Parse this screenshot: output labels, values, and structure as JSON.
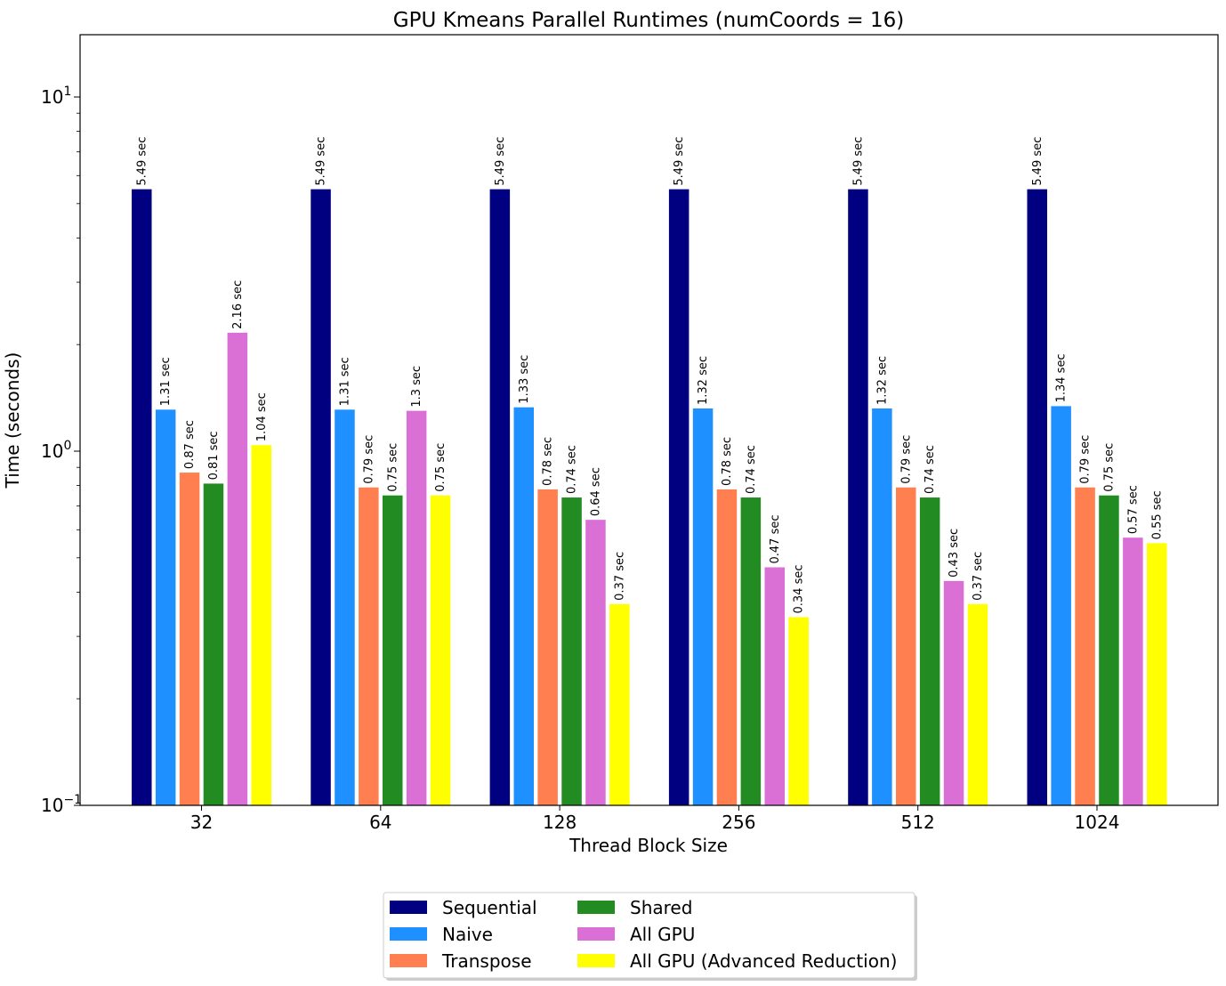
{
  "chart_data": {
    "type": "bar",
    "title": "GPU Kmeans Parallel Runtimes (numCoords = 16)",
    "xlabel": "Thread Block Size",
    "ylabel": "Time (seconds)",
    "y_scale": "log",
    "ylim": [
      0.1,
      15.5
    ],
    "y_ticks": [
      {
        "value": 0.1,
        "base": "10",
        "exp": "−1"
      },
      {
        "value": 1,
        "base": "10",
        "exp": "0"
      },
      {
        "value": 10,
        "base": "10",
        "exp": "1"
      }
    ],
    "categories": [
      "32",
      "64",
      "128",
      "256",
      "512",
      "1024"
    ],
    "series": [
      {
        "name": "Sequential",
        "color": "#000080",
        "values": [
          5.49,
          5.49,
          5.49,
          5.49,
          5.49,
          5.49
        ],
        "labels": [
          "5.49 sec",
          "5.49 sec",
          "5.49 sec",
          "5.49 sec",
          "5.49 sec",
          "5.49 sec"
        ]
      },
      {
        "name": "Naive",
        "color": "#1E90FF",
        "values": [
          1.31,
          1.31,
          1.33,
          1.32,
          1.32,
          1.34
        ],
        "labels": [
          "1.31 sec",
          "1.31 sec",
          "1.33 sec",
          "1.32 sec",
          "1.32 sec",
          "1.34 sec"
        ]
      },
      {
        "name": "Transpose",
        "color": "#FF7F50",
        "values": [
          0.87,
          0.79,
          0.78,
          0.78,
          0.79,
          0.79
        ],
        "labels": [
          "0.87 sec",
          "0.79 sec",
          "0.78 sec",
          "0.78 sec",
          "0.79 sec",
          "0.79 sec"
        ]
      },
      {
        "name": "Shared",
        "color": "#228B22",
        "values": [
          0.81,
          0.75,
          0.74,
          0.74,
          0.74,
          0.75
        ],
        "labels": [
          "0.81 sec",
          "0.75 sec",
          "0.74 sec",
          "0.74 sec",
          "0.74 sec",
          "0.75 sec"
        ]
      },
      {
        "name": "All GPU",
        "color": "#DA70D6",
        "values": [
          2.16,
          1.3,
          0.64,
          0.47,
          0.43,
          0.57
        ],
        "labels": [
          "2.16 sec",
          "1.3 sec",
          "0.64 sec",
          "0.47 sec",
          "0.43 sec",
          "0.57 sec"
        ]
      },
      {
        "name": "All GPU (Advanced Reduction)",
        "color": "#FFFF00",
        "values": [
          1.04,
          0.75,
          0.37,
          0.34,
          0.37,
          0.55
        ],
        "labels": [
          "1.04 sec",
          "0.75 sec",
          "0.37 sec",
          "0.34 sec",
          "0.37 sec",
          "0.55 sec"
        ]
      }
    ],
    "legend": {
      "placement": "bottom-center",
      "columns": 2
    },
    "grid": false
  }
}
